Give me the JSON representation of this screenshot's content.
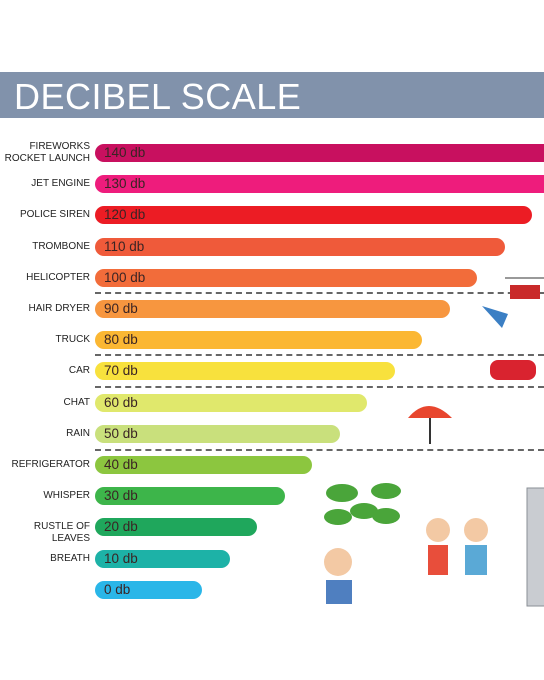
{
  "chart_data": {
    "type": "bar",
    "orientation": "horizontal",
    "title": "DECIBEL SCALE",
    "categories": [
      "FIREWORKS\nROCKET LAUNCH",
      "JET ENGINE",
      "POLICE SIREN",
      "TROMBONE",
      "HELICOPTER",
      "HAIR DRYER",
      "TRUCK",
      "CAR",
      "CHAT",
      "RAIN",
      "REFRIGERATOR",
      "WHISPER",
      "RUSTLE OF LEAVES",
      "BREATH",
      null
    ],
    "values": [
      140,
      130,
      120,
      110,
      100,
      90,
      80,
      70,
      60,
      50,
      40,
      30,
      20,
      10,
      0
    ],
    "value_labels": [
      "140 db",
      "130 db",
      "120 db",
      "110 db",
      "100 db",
      "90 db",
      "80 db",
      "70 db",
      "60 db",
      "50 db",
      "40 db",
      "30 db",
      "20 db",
      "10 db",
      "0 db"
    ],
    "colors": [
      "#c8105f",
      "#ee1c7c",
      "#ec1c24",
      "#ef5a3a",
      "#f26c3a",
      "#f7963f",
      "#fbb733",
      "#f8e13d",
      "#e0e86c",
      "#c9e07c",
      "#8cc63f",
      "#3db54a",
      "#1fa75c",
      "#1db2a7",
      "#2ab6e8"
    ]
  }
}
